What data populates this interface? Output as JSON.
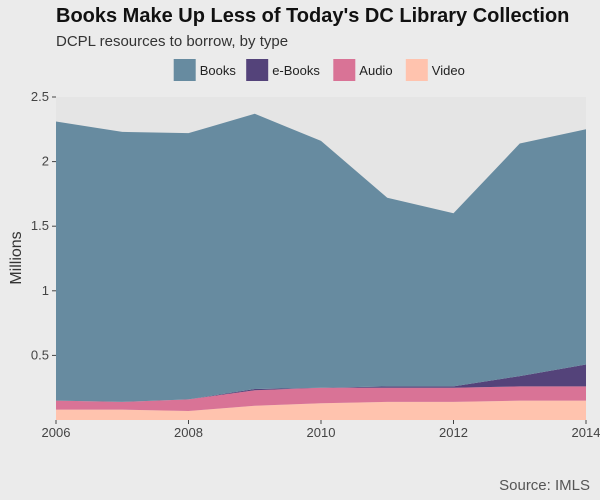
{
  "header": {
    "title": "Books Make Up Less of Today's DC Library Collection",
    "subtitle": "DCPL resources to borrow, by type"
  },
  "footer": {
    "source": "Source: IMLS"
  },
  "chart_data": {
    "type": "area",
    "stacked": true,
    "x": [
      2006,
      2007,
      2008,
      2009,
      2010,
      2011,
      2012,
      2013,
      2014
    ],
    "xticks": [
      2006,
      2008,
      2010,
      2012,
      2014
    ],
    "yticks": [
      0.5,
      1,
      1.5,
      2,
      2.5
    ],
    "ylabel": "Millions",
    "xlim": [
      2006,
      2014
    ],
    "ylim": [
      0,
      2.5
    ],
    "legend_position": "top",
    "grid": false,
    "stack_order": [
      "Video",
      "Audio",
      "e-Books",
      "Books"
    ],
    "series": [
      {
        "name": "Books",
        "color": "#678ba0",
        "values": [
          2.16,
          2.09,
          2.06,
          2.13,
          1.91,
          1.46,
          1.34,
          1.8,
          1.82
        ]
      },
      {
        "name": "e-Books",
        "color": "#54437a",
        "values": [
          0.0,
          0.0,
          0.0,
          0.01,
          0.0,
          0.01,
          0.01,
          0.08,
          0.17
        ]
      },
      {
        "name": "Audio",
        "color": "#d97396",
        "values": [
          0.07,
          0.06,
          0.09,
          0.12,
          0.12,
          0.11,
          0.11,
          0.11,
          0.11
        ]
      },
      {
        "name": "Video",
        "color": "#ffc3ae",
        "values": [
          0.08,
          0.08,
          0.07,
          0.11,
          0.13,
          0.14,
          0.14,
          0.15,
          0.15
        ]
      }
    ]
  }
}
